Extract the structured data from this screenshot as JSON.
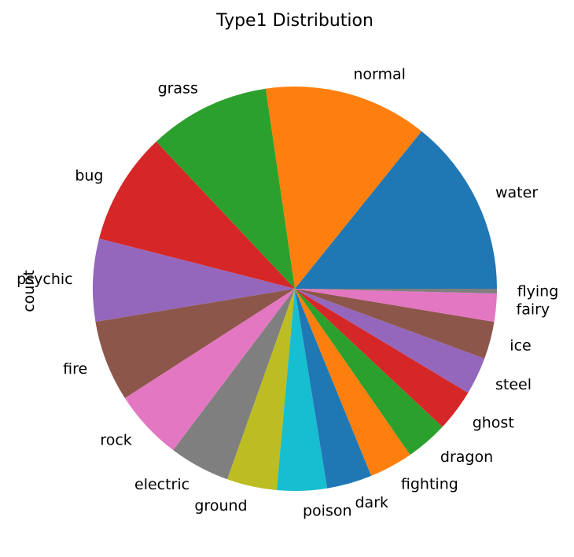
{
  "chart_data": {
    "type": "pie",
    "title": "Type1 Distribution",
    "ylabel": "count",
    "start_angle_deg": 0,
    "direction": "counterclockwise",
    "slices": [
      {
        "label": "water",
        "value": 114,
        "color": "#1f77b4"
      },
      {
        "label": "normal",
        "value": 105,
        "color": "#ff7f0e"
      },
      {
        "label": "grass",
        "value": 78,
        "color": "#2ca02c"
      },
      {
        "label": "bug",
        "value": 72,
        "color": "#d62728"
      },
      {
        "label": "psychic",
        "value": 53,
        "color": "#9467bd"
      },
      {
        "label": "fire",
        "value": 52,
        "color": "#8c564b"
      },
      {
        "label": "rock",
        "value": 45,
        "color": "#e377c2"
      },
      {
        "label": "electric",
        "value": 39,
        "color": "#7f7f7f"
      },
      {
        "label": "ground",
        "value": 32,
        "color": "#bcbd22"
      },
      {
        "label": "poison",
        "value": 32,
        "color": "#17becf"
      },
      {
        "label": "dark",
        "value": 29,
        "color": "#1f77b4"
      },
      {
        "label": "fighting",
        "value": 28,
        "color": "#ff7f0e"
      },
      {
        "label": "dragon",
        "value": 27,
        "color": "#2ca02c"
      },
      {
        "label": "ghost",
        "value": 27,
        "color": "#d62728"
      },
      {
        "label": "steel",
        "value": 24,
        "color": "#9467bd"
      },
      {
        "label": "ice",
        "value": 24,
        "color": "#8c564b"
      },
      {
        "label": "fairy",
        "value": 18,
        "color": "#e377c2"
      },
      {
        "label": "flying",
        "value": 3,
        "color": "#7f7f7f"
      }
    ]
  }
}
